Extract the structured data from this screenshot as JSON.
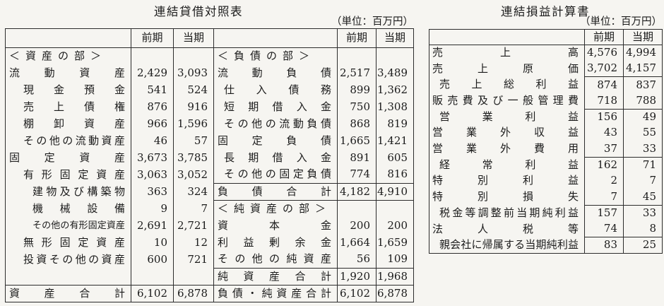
{
  "balance_sheet": {
    "title": "連結貸借対照表",
    "unit_note": "（単位：百万円）",
    "period_headers": [
      "前期",
      "当期"
    ],
    "assets_rows": [
      {
        "label": "＜資産の部＞",
        "section": true
      },
      {
        "label": "流動資産",
        "prior": "2,429",
        "current": "3,093",
        "indent": 0
      },
      {
        "label": "現金預金",
        "prior": "541",
        "current": "524",
        "indent": 1
      },
      {
        "label": "売上債権",
        "prior": "876",
        "current": "916",
        "indent": 1
      },
      {
        "label": "棚卸資産",
        "prior": "966",
        "current": "1,596",
        "indent": 1
      },
      {
        "label": "その他の流動資産",
        "prior": "46",
        "current": "57",
        "indent": 1
      },
      {
        "label": "固定資産",
        "prior": "3,673",
        "current": "3,785",
        "indent": 0
      },
      {
        "label": "有形固定資産",
        "prior": "3,063",
        "current": "3,052",
        "indent": 1
      },
      {
        "label": "建物及び構築物",
        "prior": "363",
        "current": "324",
        "indent": 2
      },
      {
        "label": "機械設備",
        "prior": "9",
        "current": "7",
        "indent": 2
      },
      {
        "label": "その他の有形固定資産",
        "prior": "2,691",
        "current": "2,721",
        "indent": 2
      },
      {
        "label": "無形固定資産",
        "prior": "10",
        "current": "12",
        "indent": 1
      },
      {
        "label": "投資その他の資産",
        "prior": "600",
        "current": "721",
        "indent": 1
      },
      {
        "blank": true
      },
      {
        "label": "資産合計",
        "prior": "6,102",
        "current": "6,878",
        "indent": 0,
        "total": true
      }
    ],
    "liabilities_rows": [
      {
        "label": "＜負債の部＞",
        "section": true
      },
      {
        "label": "流動負債",
        "prior": "2,517",
        "current": "3,489",
        "indent": 0
      },
      {
        "label": "仕入債務",
        "prior": "899",
        "current": "1,362",
        "indent": 1
      },
      {
        "label": "短期借入金",
        "prior": "750",
        "current": "1,308",
        "indent": 1
      },
      {
        "label": "その他の流動負債",
        "prior": "868",
        "current": "819",
        "indent": 1
      },
      {
        "label": "固定負債",
        "prior": "1,665",
        "current": "1,421",
        "indent": 0
      },
      {
        "label": "長期借入金",
        "prior": "891",
        "current": "605",
        "indent": 1
      },
      {
        "label": "その他の固定負債",
        "prior": "774",
        "current": "816",
        "indent": 1
      },
      {
        "label": "負債合計",
        "prior": "4,182",
        "current": "4,910",
        "indent": 0,
        "total": true
      },
      {
        "label": "＜純資産の部＞",
        "section": true
      },
      {
        "label": "資本金",
        "prior": "200",
        "current": "200",
        "indent": 0
      },
      {
        "label": "利益剰余金",
        "prior": "1,664",
        "current": "1,659",
        "indent": 0
      },
      {
        "label": "その他の純資産",
        "prior": "56",
        "current": "109",
        "indent": 0
      },
      {
        "label": "純資産合計",
        "prior": "1,920",
        "current": "1,968",
        "indent": 0,
        "total": true
      },
      {
        "label": "負債・純資産合計",
        "prior": "6,102",
        "current": "6,878",
        "indent": 0,
        "total": true
      }
    ]
  },
  "income_statement": {
    "title": "連結損益計算書",
    "unit_note": "（単位：百万円）",
    "period_headers": [
      "前期",
      "当期"
    ],
    "rows": [
      {
        "label": "売上高",
        "prior": "4,576",
        "current": "4,994",
        "indent": 0
      },
      {
        "label": "売上原価",
        "prior": "3,702",
        "current": "4,157",
        "indent": 0
      },
      {
        "label": "売上総利益",
        "prior": "874",
        "current": "837",
        "indent": 1,
        "subtotal": true
      },
      {
        "label": "販売費及び一般管理費",
        "prior": "718",
        "current": "788",
        "indent": 0
      },
      {
        "label": "営業利益",
        "prior": "156",
        "current": "49",
        "indent": 1,
        "subtotal": true
      },
      {
        "label": "営業外収益",
        "prior": "43",
        "current": "55",
        "indent": 0
      },
      {
        "label": "営業外費用",
        "prior": "37",
        "current": "33",
        "indent": 0
      },
      {
        "label": "経常利益",
        "prior": "162",
        "current": "71",
        "indent": 1,
        "subtotal": true
      },
      {
        "label": "特別利益",
        "prior": "2",
        "current": "7",
        "indent": 0
      },
      {
        "label": "特別損失",
        "prior": "7",
        "current": "45",
        "indent": 0
      },
      {
        "label": "税金等調整前当期純利益",
        "prior": "157",
        "current": "33",
        "indent": 1,
        "subtotal": true
      },
      {
        "label": "法人税等",
        "prior": "74",
        "current": "8",
        "indent": 0
      },
      {
        "label": "親会社に帰属する当期純利益",
        "prior": "83",
        "current": "25",
        "indent": 1,
        "subtotal": true
      }
    ]
  }
}
